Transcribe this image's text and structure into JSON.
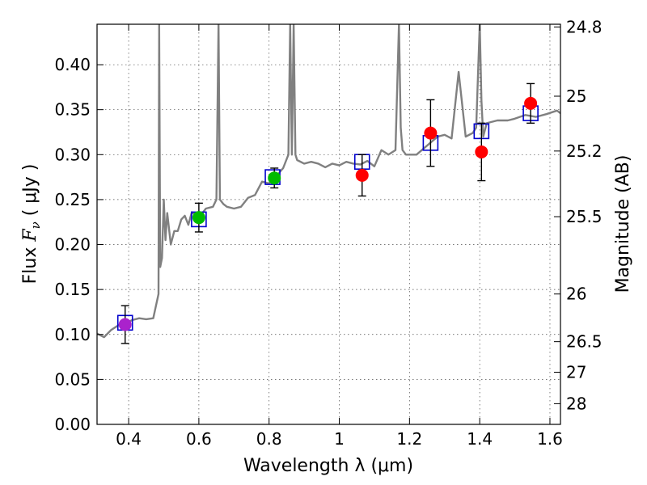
{
  "chart_data": {
    "type": "scatter",
    "title": "",
    "xlabel": "Wavelength  λ (μm)",
    "ylabel_prefix": "Flux ",
    "ylabel_symbol": "F",
    "ylabel_subscript": "ν",
    "ylabel_unit": " ( μJy )",
    "y2label": "Magnitude (AB)",
    "xlim": [
      0.31,
      1.63
    ],
    "ylim": [
      0.0,
      0.445
    ],
    "grid": true,
    "x_ticks": [
      {
        "value": 0.4,
        "label": "0.4"
      },
      {
        "value": 0.6,
        "label": "0.6"
      },
      {
        "value": 0.8,
        "label": "0.8"
      },
      {
        "value": 1.0,
        "label": "1"
      },
      {
        "value": 1.2,
        "label": "1.2"
      },
      {
        "value": 1.4,
        "label": "1.4"
      },
      {
        "value": 1.6,
        "label": "1.6"
      }
    ],
    "y_ticks": [
      {
        "value": 0.0,
        "label": "0.00"
      },
      {
        "value": 0.05,
        "label": "0.05"
      },
      {
        "value": 0.1,
        "label": "0.10"
      },
      {
        "value": 0.15,
        "label": "0.15"
      },
      {
        "value": 0.2,
        "label": "0.20"
      },
      {
        "value": 0.25,
        "label": "0.25"
      },
      {
        "value": 0.3,
        "label": "0.30"
      },
      {
        "value": 0.35,
        "label": "0.35"
      },
      {
        "value": 0.4,
        "label": "0.40"
      }
    ],
    "magnitude_ticks": [
      {
        "flux": 0.442,
        "label": "24.8"
      },
      {
        "flux": 0.365,
        "label": "25"
      },
      {
        "flux": 0.304,
        "label": "25.2"
      },
      {
        "flux": 0.231,
        "label": "25.5"
      },
      {
        "flux": 0.145,
        "label": "26"
      },
      {
        "flux": 0.092,
        "label": "26.5"
      },
      {
        "flux": 0.058,
        "label": "27"
      },
      {
        "flux": 0.023,
        "label": "28"
      }
    ],
    "spectrum": {
      "name": "model spectrum",
      "color": "#808080",
      "x": [
        0.31,
        0.33,
        0.35,
        0.37,
        0.39,
        0.41,
        0.43,
        0.45,
        0.47,
        0.485,
        0.487,
        0.49,
        0.495,
        0.5,
        0.505,
        0.51,
        0.52,
        0.53,
        0.54,
        0.55,
        0.56,
        0.57,
        0.58,
        0.6,
        0.62,
        0.64,
        0.65,
        0.656,
        0.66,
        0.67,
        0.68,
        0.7,
        0.72,
        0.74,
        0.76,
        0.78,
        0.8,
        0.82,
        0.84,
        0.855,
        0.86,
        0.865,
        0.87,
        0.875,
        0.88,
        0.9,
        0.92,
        0.94,
        0.96,
        0.98,
        1.0,
        1.02,
        1.04,
        1.06,
        1.08,
        1.1,
        1.12,
        1.14,
        1.16,
        1.17,
        1.175,
        1.18,
        1.19,
        1.22,
        1.25,
        1.28,
        1.3,
        1.32,
        1.34,
        1.36,
        1.38,
        1.39,
        1.4,
        1.405,
        1.41,
        1.42,
        1.45,
        1.48,
        1.5,
        1.53,
        1.56,
        1.59,
        1.62,
        1.63
      ],
      "y": [
        0.101,
        0.097,
        0.105,
        0.11,
        0.112,
        0.116,
        0.118,
        0.117,
        0.118,
        0.145,
        0.445,
        0.175,
        0.185,
        0.25,
        0.205,
        0.235,
        0.2,
        0.215,
        0.215,
        0.228,
        0.232,
        0.222,
        0.236,
        0.23,
        0.24,
        0.242,
        0.25,
        0.445,
        0.25,
        0.245,
        0.242,
        0.24,
        0.242,
        0.252,
        0.255,
        0.27,
        0.268,
        0.276,
        0.285,
        0.3,
        0.445,
        0.3,
        0.445,
        0.3,
        0.294,
        0.29,
        0.292,
        0.29,
        0.286,
        0.29,
        0.288,
        0.292,
        0.29,
        0.289,
        0.293,
        0.287,
        0.305,
        0.3,
        0.305,
        0.445,
        0.33,
        0.305,
        0.3,
        0.3,
        0.31,
        0.32,
        0.322,
        0.318,
        0.392,
        0.32,
        0.324,
        0.33,
        0.445,
        0.36,
        0.32,
        0.335,
        0.338,
        0.338,
        0.34,
        0.344,
        0.342,
        0.345,
        0.349,
        0.346
      ]
    },
    "model_photometry": {
      "name": "model photometry",
      "marker": "open square",
      "color": "#0000cc",
      "x": [
        0.39,
        0.6,
        0.81,
        1.065,
        1.26,
        1.405,
        1.545
      ],
      "y": [
        0.113,
        0.228,
        0.275,
        0.292,
        0.313,
        0.326,
        0.346
      ]
    },
    "observed_photometry": {
      "name": "observed photometry",
      "marker": "filled circle",
      "x": [
        0.39,
        0.6,
        0.815,
        1.065,
        1.26,
        1.405,
        1.545
      ],
      "y": [
        0.111,
        0.23,
        0.274,
        0.277,
        0.324,
        0.303,
        0.357
      ],
      "yerr": [
        0.021,
        0.016,
        0.011,
        0.023,
        0.037,
        0.032,
        0.022
      ],
      "colors": [
        "#aa22cc",
        "#00bb00",
        "#00bb00",
        "#ff0000",
        "#ff0000",
        "#ff0000",
        "#ff0000"
      ]
    }
  }
}
